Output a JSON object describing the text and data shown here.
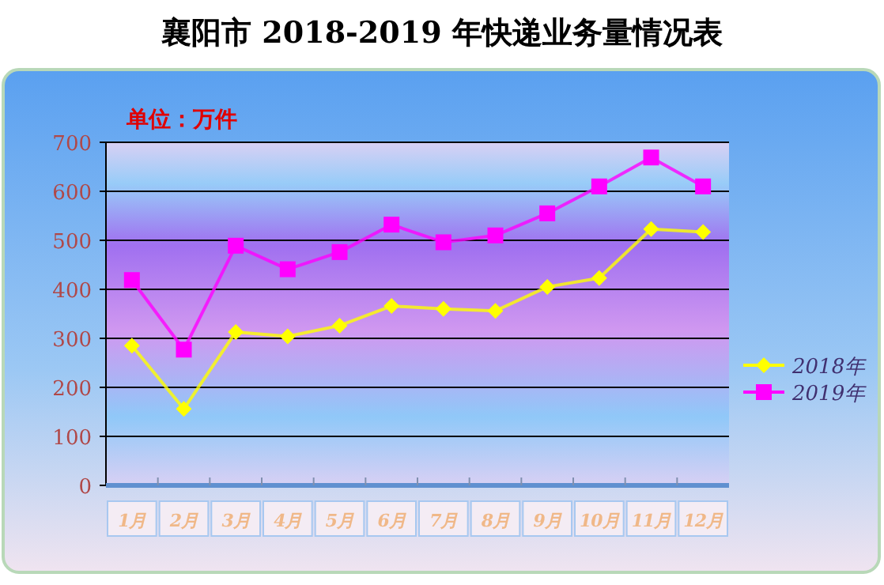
{
  "chart_data": {
    "type": "line",
    "title": "襄阳市 2018-2019 年快递业务量情况表",
    "subtitle": "单位：万件",
    "categories": [
      "1月",
      "2月",
      "3月",
      "4月",
      "5月",
      "6月",
      "7月",
      "8月",
      "9月",
      "10月",
      "11月",
      "12月"
    ],
    "series": [
      {
        "name": "2018年",
        "color": "#ffff00",
        "marker": "diamond",
        "values": [
          285,
          156,
          313,
          304,
          326,
          366,
          360,
          356,
          405,
          423,
          523,
          517
        ]
      },
      {
        "name": "2019年",
        "color": "#ff00ff",
        "marker": "square",
        "values": [
          419,
          277,
          489,
          441,
          476,
          532,
          496,
          510,
          555,
          610,
          669,
          610
        ]
      }
    ],
    "ylim": [
      0,
      700
    ],
    "yticks": [
      0,
      100,
      200,
      300,
      400,
      500,
      600,
      700
    ],
    "grid": "y",
    "legend": "right"
  }
}
